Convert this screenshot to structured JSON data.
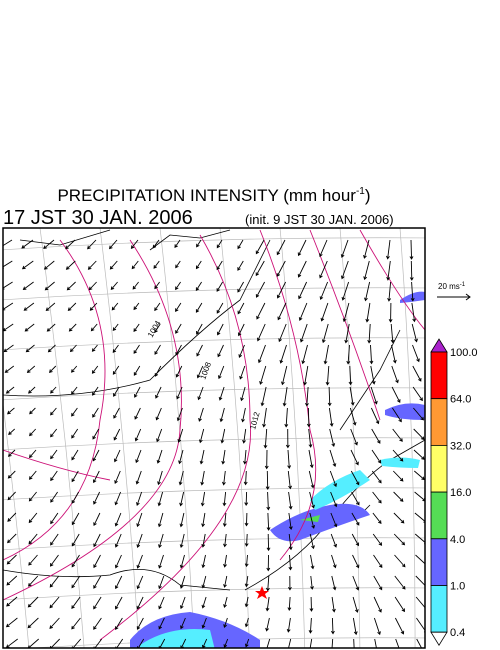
{
  "header": {
    "title": "PRECIPITATION INTENSITY (mm hour",
    "title_sup": "-1",
    "title_end": ")",
    "time": "17 JST 30 JAN. 2006",
    "init": "(init. 9 JST 30 JAN. 2006)"
  },
  "scale": {
    "label": "20 ms",
    "label_sup": "-1"
  },
  "isobars": {
    "labels": [
      "1004",
      "1008",
      "1012"
    ]
  },
  "colorbar": {
    "labels": [
      "100.0",
      "64.0",
      "32.0",
      "16.0",
      "4.0",
      "1.0",
      "0.4"
    ],
    "colors": [
      "#ff0000",
      "#ff9933",
      "#ffff66",
      "#55dd55",
      "#6666ff",
      "#55eeff"
    ],
    "over": "#aa22cc",
    "under": "#ffffff"
  }
}
